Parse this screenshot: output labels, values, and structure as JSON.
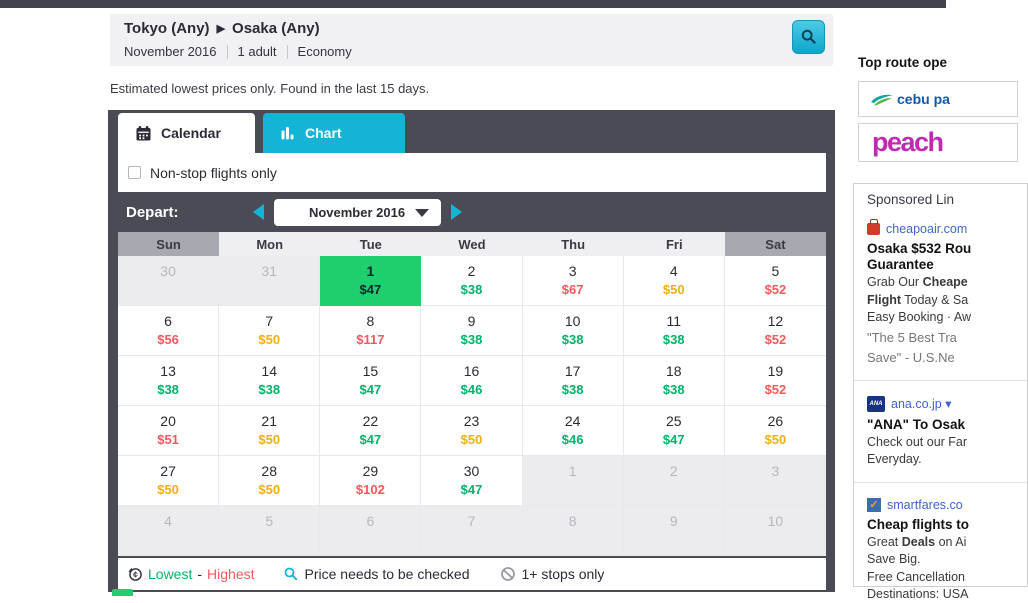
{
  "colors": {
    "accent_cyan": "#14b4d6",
    "panel_dark": "#4b4b55",
    "selected_green": "#1fce6d",
    "price_green": "#00b368",
    "price_orange": "#f2af15",
    "price_red": "#f4595b"
  },
  "header": {
    "origin": "Tokyo (Any)",
    "route_arrow": "▶",
    "destination": "Osaka (Any)",
    "month": "November 2016",
    "passengers": "1 adult",
    "cabin": "Economy",
    "search_icon": "magnifier"
  },
  "note": "Estimated lowest prices only. Found in the last 15 days.",
  "tabs": {
    "calendar": "Calendar",
    "chart": "Chart"
  },
  "filter": {
    "label": "Non-stop flights only",
    "checked": false
  },
  "depart": {
    "label": "Depart:",
    "month_selected": "November 2016"
  },
  "calendar": {
    "weekdays": [
      "Sun",
      "Mon",
      "Tue",
      "Wed",
      "Thu",
      "Fri",
      "Sat"
    ],
    "weeks": [
      [
        {
          "day": "30",
          "outside": true
        },
        {
          "day": "31",
          "outside": true
        },
        {
          "day": "1",
          "price": "$47",
          "tier": "selected"
        },
        {
          "day": "2",
          "price": "$38",
          "tier": "green"
        },
        {
          "day": "3",
          "price": "$67",
          "tier": "red"
        },
        {
          "day": "4",
          "price": "$50",
          "tier": "orange"
        },
        {
          "day": "5",
          "price": "$52",
          "tier": "red"
        }
      ],
      [
        {
          "day": "6",
          "price": "$56",
          "tier": "red"
        },
        {
          "day": "7",
          "price": "$50",
          "tier": "orange"
        },
        {
          "day": "8",
          "price": "$117",
          "tier": "red"
        },
        {
          "day": "9",
          "price": "$38",
          "tier": "green"
        },
        {
          "day": "10",
          "price": "$38",
          "tier": "green"
        },
        {
          "day": "11",
          "price": "$38",
          "tier": "green"
        },
        {
          "day": "12",
          "price": "$52",
          "tier": "red"
        }
      ],
      [
        {
          "day": "13",
          "price": "$38",
          "tier": "green"
        },
        {
          "day": "14",
          "price": "$38",
          "tier": "green"
        },
        {
          "day": "15",
          "price": "$47",
          "tier": "green"
        },
        {
          "day": "16",
          "price": "$46",
          "tier": "green"
        },
        {
          "day": "17",
          "price": "$38",
          "tier": "green"
        },
        {
          "day": "18",
          "price": "$38",
          "tier": "green"
        },
        {
          "day": "19",
          "price": "$52",
          "tier": "red"
        }
      ],
      [
        {
          "day": "20",
          "price": "$51",
          "tier": "red"
        },
        {
          "day": "21",
          "price": "$50",
          "tier": "orange"
        },
        {
          "day": "22",
          "price": "$47",
          "tier": "green"
        },
        {
          "day": "23",
          "price": "$50",
          "tier": "orange"
        },
        {
          "day": "24",
          "price": "$46",
          "tier": "green"
        },
        {
          "day": "25",
          "price": "$47",
          "tier": "green"
        },
        {
          "day": "26",
          "price": "$50",
          "tier": "orange"
        }
      ],
      [
        {
          "day": "27",
          "price": "$50",
          "tier": "orange"
        },
        {
          "day": "28",
          "price": "$50",
          "tier": "orange"
        },
        {
          "day": "29",
          "price": "$102",
          "tier": "red"
        },
        {
          "day": "30",
          "price": "$47",
          "tier": "green"
        },
        {
          "day": "1",
          "outside": true
        },
        {
          "day": "2",
          "outside": true
        },
        {
          "day": "3",
          "outside": true
        }
      ],
      [
        {
          "day": "4",
          "outside": true
        },
        {
          "day": "5",
          "outside": true
        },
        {
          "day": "6",
          "outside": true
        },
        {
          "day": "7",
          "outside": true
        },
        {
          "day": "8",
          "outside": true
        },
        {
          "day": "9",
          "outside": true
        },
        {
          "day": "10",
          "outside": true
        }
      ]
    ]
  },
  "legend": {
    "price_icon": "coin-icon",
    "lowest": "Lowest",
    "separator": "-",
    "highest": "Highest",
    "check_icon": "search-icon",
    "check": "Price needs to be checked",
    "stops_icon": "no-entry-icon",
    "stops": "1+ stops only"
  },
  "sidebar": {
    "heading": "Top route ope",
    "operators": [
      {
        "name": "cebu pa",
        "logo": "cebu-pacific"
      },
      {
        "name": "peach",
        "logo": "peach"
      }
    ],
    "sponsored": {
      "heading": "Sponsored Lin",
      "ads": [
        {
          "icon": "suitcase",
          "link": "cheapoair.com",
          "title_lines": [
            "Osaka $532 Rou",
            "Guarantee"
          ],
          "body_lines": [
            [
              {
                "t": "Grab Our ",
                "b": 0
              },
              {
                "t": "Cheape",
                "b": 1
              }
            ],
            [
              {
                "t": "Flight",
                "b": 1
              },
              {
                "t": " Today & Sa",
                "b": 0
              }
            ],
            [
              {
                "t": "Easy Booking · Aw",
                "b": 0
              }
            ]
          ],
          "quote_lines": [
            "\"The 5 Best Tra",
            "Save\" - U.S.Ne"
          ]
        },
        {
          "icon": "ana",
          "link": "ana.co.jp ▾",
          "title_lines": [
            "\"ANA\" To Osak"
          ],
          "body_lines": [
            [
              {
                "t": "Check out our Far",
                "b": 0
              }
            ],
            [
              {
                "t": "Everyday.",
                "b": 0
              }
            ]
          ],
          "quote_lines": []
        },
        {
          "icon": "smartfares",
          "link": "smartfares.co",
          "title_lines": [
            "Cheap flights to"
          ],
          "body_lines": [
            [
              {
                "t": "Great ",
                "b": 0
              },
              {
                "t": "Deals",
                "b": 1
              },
              {
                "t": " on Ai",
                "b": 0
              }
            ],
            [
              {
                "t": "Save Big.",
                "b": 0
              }
            ],
            [
              {
                "t": "Free Cancellation",
                "b": 0
              }
            ],
            [
              {
                "t": "Destinations: USA",
                "b": 0
              }
            ]
          ],
          "quote_lines": []
        }
      ]
    }
  }
}
